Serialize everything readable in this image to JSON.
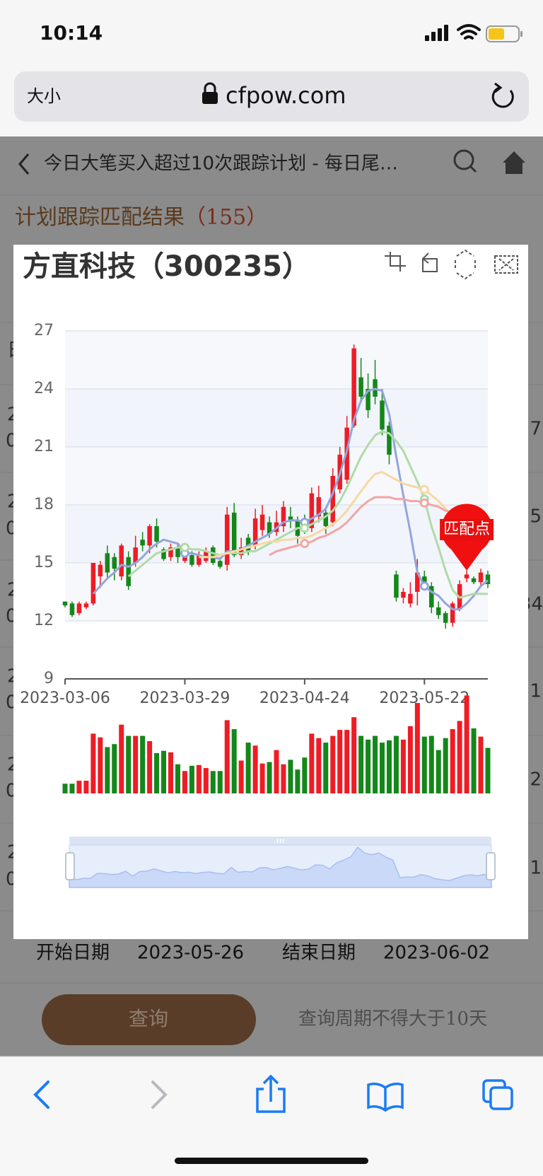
{
  "status_bar": {
    "time": "10:14"
  },
  "browser": {
    "text_size": "大小",
    "url": "cfpow.com"
  },
  "page": {
    "title": "今日大笔买入超过10次跟踪计划 - 每日尾…",
    "result_heading": "计划跟踪匹配结果",
    "result_count": "（155）",
    "table": {
      "header": "日",
      "rows": [
        {
          "left": [
            "2",
            "0"
          ],
          "right": "7"
        },
        {
          "left": [
            "2",
            "0"
          ],
          "right": "5"
        },
        {
          "left": [
            "2",
            "0"
          ],
          "right": "34"
        },
        {
          "left": [
            "2",
            "0"
          ],
          "right": "1"
        },
        {
          "left": [
            "2",
            "0"
          ],
          "right": "2"
        },
        {
          "left": [
            "2",
            "0"
          ],
          "right": "1"
        }
      ]
    },
    "start_label": "开始日期",
    "start_date": "2023-05-26",
    "end_label": "结束日期",
    "end_date": "2023-06-02",
    "query_button": "查询",
    "query_note": "查询周期不得大于10天"
  },
  "chart_data": {
    "type": "candlestick",
    "title": "方直科技（300235）",
    "categories": [
      "2023-03-06",
      null,
      null,
      null,
      null,
      null,
      null,
      null,
      null,
      null,
      null,
      null,
      null,
      null,
      null,
      null,
      null,
      "2023-03-29",
      null,
      null,
      null,
      null,
      null,
      null,
      null,
      null,
      null,
      null,
      null,
      null,
      null,
      null,
      null,
      null,
      "2023-04-24",
      null,
      null,
      null,
      null,
      null,
      null,
      null,
      null,
      null,
      null,
      null,
      null,
      null,
      null,
      null,
      null,
      "2023-05-22",
      null,
      null,
      null,
      null,
      null,
      null,
      null,
      null,
      null
    ],
    "candles": {
      "open": [
        13.0,
        12.9,
        12.4,
        12.7,
        12.9,
        14.3,
        15.5,
        15.3,
        14.3,
        15.3,
        15.0,
        16.2,
        15.9,
        16.9,
        15.7,
        15.3,
        15.8,
        15.1,
        15.4,
        14.9,
        15.1,
        15.8,
        15.1,
        14.9,
        17.6,
        15.4,
        16.3,
        15.9,
        16.7,
        17.1,
        16.6,
        16.9,
        17.4,
        17.2,
        17.3,
        16.8,
        17.4,
        17.6,
        17.1,
        18.8,
        19.3,
        22.1,
        24.6,
        24.0,
        24.5,
        23.4,
        22.1,
        14.4,
        13.2,
        12.9,
        13.5,
        14.3,
        13.8,
        12.7,
        12.4,
        11.9,
        12.6,
        14.2,
        14.2,
        14.0,
        14.4
      ],
      "close": [
        12.8,
        12.3,
        12.9,
        12.9,
        15.0,
        14.9,
        14.5,
        14.7,
        15.9,
        13.8,
        15.8,
        15.9,
        16.9,
        16.1,
        15.2,
        15.8,
        15.3,
        15.5,
        14.9,
        15.4,
        15.6,
        15.0,
        14.8,
        17.5,
        15.4,
        15.8,
        15.6,
        17.3,
        17.5,
        16.5,
        17.1,
        17.9,
        17.2,
        16.4,
        16.8,
        18.6,
        18.4,
        16.9,
        19.5,
        20.6,
        22.0,
        26.1,
        23.6,
        22.9,
        23.6,
        21.9,
        20.6,
        13.2,
        13.5,
        13.4,
        14.5,
        13.9,
        12.7,
        12.3,
        11.9,
        12.9,
        13.9,
        14.4,
        14.0,
        14.5,
        13.9
      ],
      "low": [
        12.7,
        12.2,
        12.3,
        12.6,
        12.8,
        13.7,
        14.2,
        14.1,
        14.1,
        13.6,
        14.8,
        15.6,
        15.5,
        15.8,
        15.1,
        15.1,
        15.0,
        15.0,
        14.8,
        14.8,
        15.0,
        14.9,
        14.7,
        14.6,
        15.3,
        15.2,
        15.4,
        15.7,
        16.4,
        16.3,
        16.4,
        16.6,
        16.8,
        16.0,
        16.5,
        16.6,
        17.1,
        16.5,
        16.9,
        18.6,
        19.1,
        22.0,
        23.3,
        22.5,
        23.2,
        21.6,
        20.1,
        13.0,
        12.9,
        12.7,
        12.8,
        13.6,
        12.4,
        12.1,
        11.6,
        11.7,
        12.5,
        14.0,
        13.9,
        13.8,
        13.7
      ],
      "high": [
        13.0,
        13.0,
        13.0,
        13.0,
        15.0,
        15.1,
        15.9,
        15.5,
        16.0,
        15.6,
        16.4,
        16.6,
        17.0,
        17.3,
        15.8,
        16.0,
        16.0,
        15.8,
        15.6,
        15.6,
        15.8,
        15.9,
        15.3,
        17.9,
        18.1,
        16.3,
        16.5,
        17.8,
        18.0,
        17.4,
        17.7,
        18.2,
        17.9,
        17.4,
        17.5,
        18.9,
        19.0,
        17.9,
        19.9,
        21.0,
        22.6,
        26.3,
        25.6,
        24.8,
        25.5,
        24.0,
        22.3,
        14.6,
        13.7,
        14.0,
        15.2,
        14.6,
        14.0,
        13.0,
        12.5,
        13.0,
        14.1,
        14.6,
        14.3,
        14.7,
        14.6
      ]
    },
    "up_color": "#ee1c25",
    "down_color": "#14871a",
    "ma_lines": [
      {
        "color": "#93a5dc",
        "values": [
          null,
          null,
          null,
          null,
          13.4,
          13.8,
          14.2,
          14.5,
          14.9,
          14.8,
          15.0,
          15.3,
          15.7,
          16.0,
          16.2,
          16.1,
          16.0,
          15.5,
          15.5,
          15.4,
          15.3,
          15.3,
          15.2,
          15.6,
          15.6,
          15.7,
          15.9,
          16.1,
          16.3,
          16.5,
          16.8,
          17.1,
          17.2,
          17.2,
          17.1,
          17.3,
          17.5,
          17.8,
          18.6,
          19.6,
          20.8,
          22.4,
          23.4,
          23.9,
          24.0,
          23.9,
          22.7,
          20.5,
          18.5,
          16.6,
          14.5,
          13.8,
          13.5,
          13.3,
          12.9,
          12.6,
          12.6,
          12.9,
          13.3,
          13.8,
          14.1
        ]
      },
      {
        "color": "#b0dba6",
        "values": [
          null,
          null,
          null,
          null,
          null,
          null,
          null,
          null,
          null,
          14.3,
          14.6,
          14.9,
          15.2,
          15.5,
          15.6,
          15.7,
          15.8,
          15.8,
          15.7,
          15.7,
          15.6,
          15.5,
          15.4,
          15.5,
          15.5,
          15.5,
          15.6,
          15.6,
          15.8,
          16.0,
          16.2,
          16.4,
          16.6,
          16.8,
          16.8,
          17.0,
          17.2,
          17.4,
          17.7,
          18.2,
          18.9,
          19.7,
          20.5,
          21.1,
          21.6,
          21.8,
          21.7,
          21.3,
          20.8,
          20.0,
          19.2,
          18.3,
          16.9,
          15.8,
          14.6,
          13.6,
          13.2,
          13.3,
          13.4,
          13.4,
          13.4
        ]
      },
      {
        "color": "#f8d9a0",
        "values": [
          null,
          null,
          null,
          null,
          null,
          null,
          null,
          null,
          null,
          null,
          null,
          null,
          null,
          null,
          null,
          null,
          null,
          null,
          null,
          15.3,
          15.3,
          15.3,
          15.4,
          15.5,
          15.6,
          15.7,
          15.8,
          15.9,
          16.0,
          16.1,
          16.1,
          16.2,
          16.2,
          16.3,
          16.3,
          16.4,
          16.6,
          16.8,
          17.0,
          17.3,
          17.7,
          18.2,
          18.7,
          19.2,
          19.6,
          19.7,
          19.5,
          19.3,
          19.1,
          19.0,
          18.9,
          18.8,
          18.5,
          18.2,
          17.8,
          17.4,
          17.0,
          null,
          null,
          null,
          null
        ]
      },
      {
        "color": "#f2a5a5",
        "values": [
          null,
          null,
          null,
          null,
          null,
          null,
          null,
          null,
          null,
          null,
          null,
          null,
          null,
          null,
          null,
          null,
          null,
          null,
          null,
          null,
          null,
          null,
          null,
          null,
          null,
          null,
          null,
          null,
          null,
          15.4,
          15.6,
          15.7,
          15.8,
          15.9,
          16.0,
          16.1,
          16.3,
          16.4,
          16.6,
          16.8,
          17.1,
          17.5,
          17.9,
          18.2,
          18.4,
          18.4,
          18.4,
          18.3,
          18.3,
          18.2,
          18.2,
          18.1,
          18.0,
          17.9,
          17.7,
          17.6,
          17.5,
          null,
          null,
          null,
          null
        ]
      }
    ],
    "signals": [
      {
        "series": 0,
        "index": 17
      },
      {
        "series": 1,
        "index": 17
      },
      {
        "series": 0,
        "index": 34
      },
      {
        "series": 1,
        "index": 34
      },
      {
        "series": 3,
        "index": 34
      },
      {
        "series": 2,
        "index": 51
      },
      {
        "series": 1,
        "index": 51
      },
      {
        "series": 3,
        "index": 51
      },
      {
        "series": 0,
        "index": 51
      }
    ],
    "markpoint": {
      "label": "匹配点",
      "index": 57
    },
    "volume": {
      "values": [
        13,
        13,
        17,
        17,
        80,
        75,
        62,
        66,
        92,
        77,
        77,
        77,
        70,
        54,
        57,
        55,
        39,
        30,
        37,
        38,
        34,
        30,
        30,
        98,
        86,
        44,
        68,
        64,
        40,
        42,
        58,
        39,
        45,
        32,
        48,
        80,
        74,
        68,
        77,
        85,
        85,
        102,
        77,
        72,
        77,
        68,
        71,
        77,
        72,
        90,
        121,
        76,
        77,
        58,
        74,
        86,
        97,
        131,
        87,
        76,
        61
      ],
      "ylim": [
        0,
        140
      ]
    },
    "ylim": [
      9,
      27
    ],
    "yticks": [
      9,
      12,
      15,
      18,
      21,
      24,
      27
    ],
    "grid": true
  }
}
